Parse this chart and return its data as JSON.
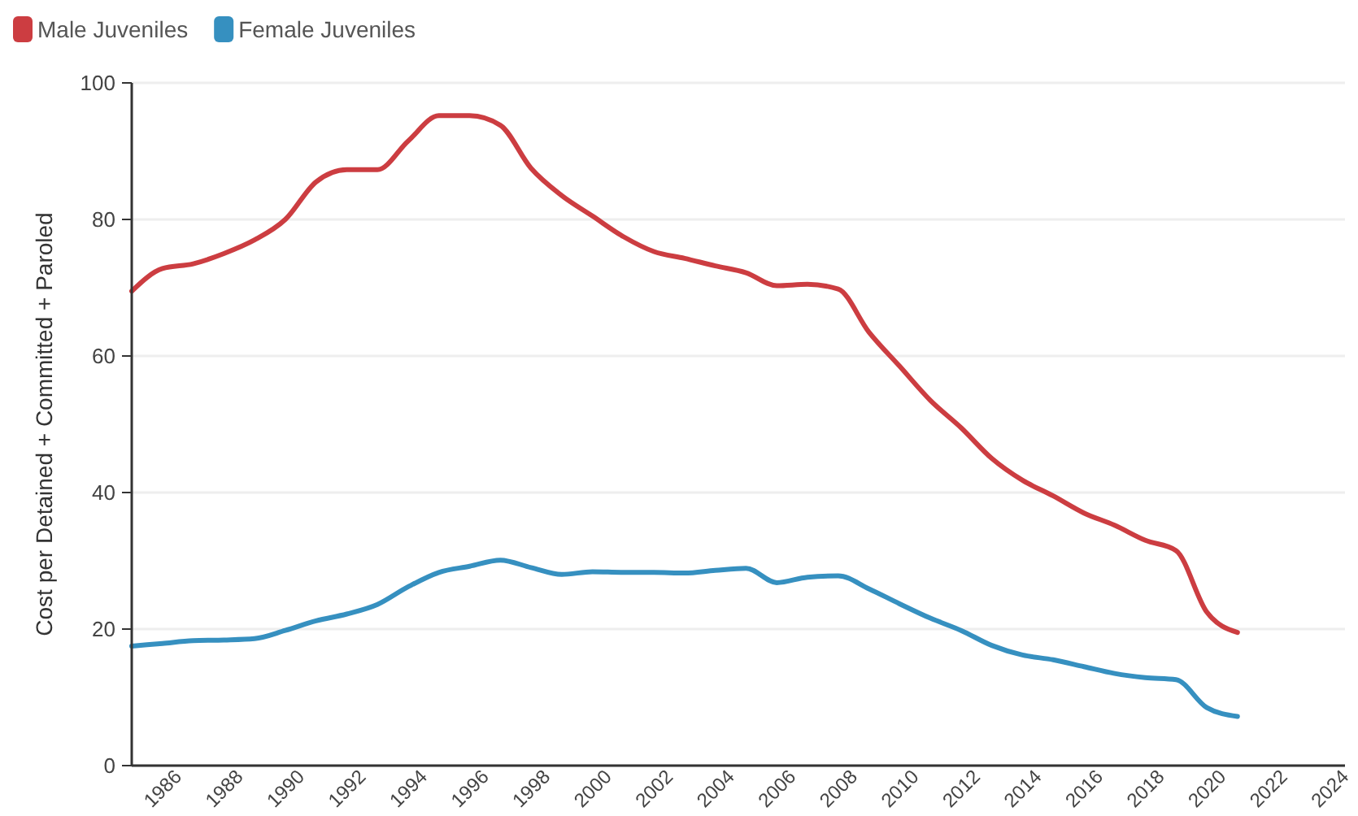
{
  "chart_data": {
    "type": "line",
    "ylabel": "Cost per Detained + Committed + Paroled",
    "x": [
      1985,
      1986,
      1987,
      1988,
      1989,
      1990,
      1991,
      1992,
      1993,
      1994,
      1995,
      1996,
      1997,
      1998,
      1999,
      2000,
      2001,
      2002,
      2003,
      2004,
      2005,
      2006,
      2007,
      2008,
      2009,
      2010,
      2011,
      2012,
      2013,
      2014,
      2015,
      2016,
      2017,
      2018,
      2019,
      2020,
      2021
    ],
    "series": [
      {
        "name": "Male Juveniles",
        "color": "#cc3d41",
        "values": [
          69.5,
          72.8,
          73.5,
          75,
          77,
          80,
          85.5,
          87.3,
          87.3,
          91.5,
          95.2,
          95.2,
          93.8,
          87.5,
          83.5,
          80.5,
          77.5,
          75.3,
          74.3,
          73.2,
          72.2,
          70.3,
          70.5,
          69.8,
          63.5,
          58.5,
          53.5,
          49.5,
          45,
          41.8,
          39.5,
          37,
          35.2,
          33,
          31.5,
          22.5,
          19.5
        ]
      },
      {
        "name": "Female Juveniles",
        "color": "#3690c0",
        "values": [
          17.5,
          17.9,
          18.3,
          18.4,
          18.6,
          19.8,
          21.2,
          22.2,
          23.6,
          26.2,
          28.3,
          29.2,
          30.1,
          29,
          28,
          28.4,
          28.3,
          28.3,
          28.2,
          28.6,
          28.9,
          26.8,
          27.6,
          27.8,
          25.9,
          23.7,
          21.6,
          19.8,
          17.6,
          16.2,
          15.5,
          14.5,
          13.5,
          12.9,
          12.6,
          8.5,
          7.2
        ]
      }
    ],
    "xlim": [
      1985,
      2024.5
    ],
    "xticks": [
      1986,
      1988,
      1990,
      1992,
      1994,
      1996,
      1998,
      2000,
      2002,
      2004,
      2006,
      2008,
      2010,
      2012,
      2014,
      2016,
      2018,
      2020,
      2022,
      2024
    ],
    "ylim": [
      0,
      100
    ],
    "yticks": [
      0,
      20,
      40,
      60,
      80,
      100
    ],
    "grid": "y",
    "legend": "top left",
    "marker": "none",
    "line_style": "solid"
  }
}
